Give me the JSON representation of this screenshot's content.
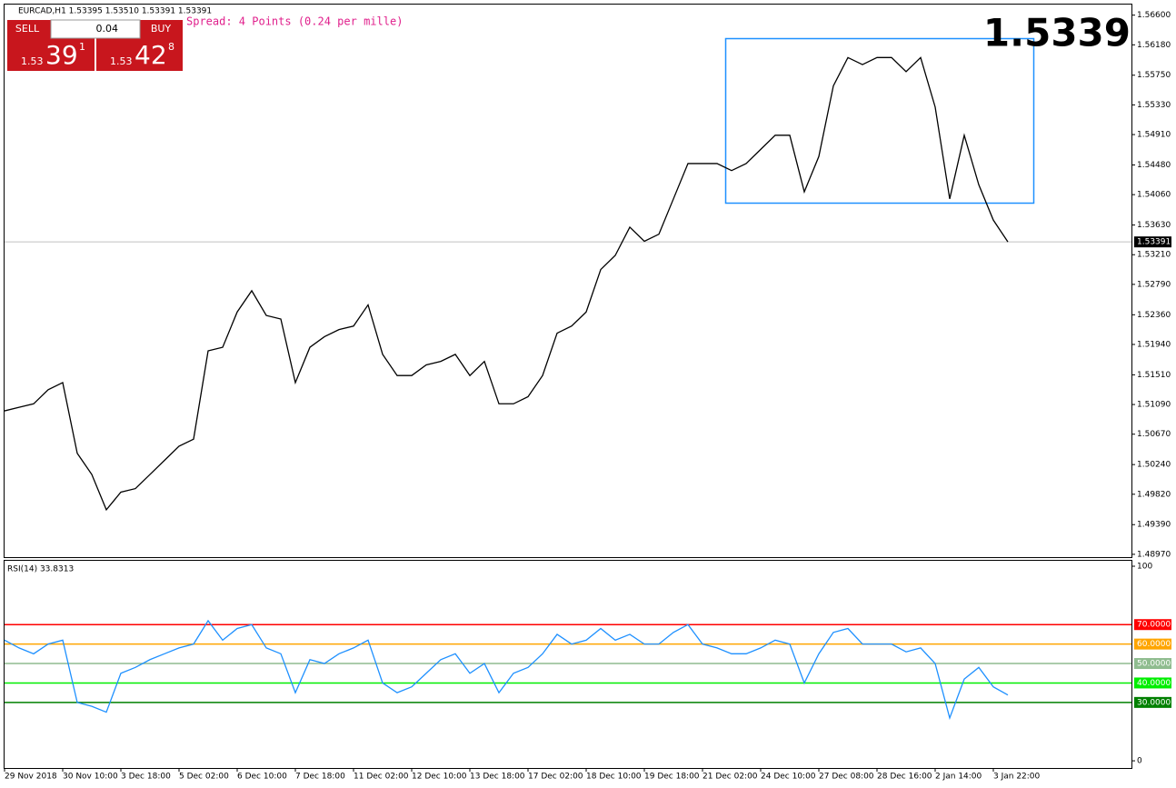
{
  "header": "EURCAD,H1  1.53395 1.53510 1.53391 1.53391",
  "spread": "Spread: 4 Points (0.24 per mille)",
  "big_price": 1.5339,
  "trade_panel": {
    "sell": "SELL",
    "buy": "BUY",
    "lot": "0.04",
    "bid": [
      "1.53",
      "39",
      "1"
    ],
    "ask": [
      "1.53",
      "42",
      "8"
    ]
  },
  "chart_data": [
    {
      "type": "line",
      "color": "#000000",
      "categories": [
        "29 Nov 2018",
        null,
        null,
        null,
        "30 Nov 10:00",
        null,
        null,
        null,
        "3 Dec 18:00",
        null,
        null,
        null,
        "5 Dec 02:00",
        null,
        null,
        null,
        "6 Dec 10:00",
        null,
        null,
        null,
        "7 Dec 18:00",
        null,
        null,
        null,
        "11 Dec 02:00",
        null,
        null,
        null,
        "12 Dec 10:00",
        null,
        null,
        null,
        "13 Dec 18:00",
        null,
        null,
        null,
        "17 Dec 02:00",
        null,
        null,
        null,
        "18 Dec 10:00",
        null,
        null,
        null,
        "19 Dec 18:00",
        null,
        null,
        null,
        "21 Dec 02:00",
        null,
        null,
        null,
        "24 Dec 10:00",
        null,
        null,
        null,
        "27 Dec 08:00",
        null,
        null,
        null,
        "28 Dec 16:00",
        null,
        null,
        null,
        "2 Jan 14:00",
        null,
        null,
        null,
        "3 Jan 22:00",
        null
      ],
      "values": [
        1.51,
        1.5105,
        1.511,
        1.513,
        1.514,
        1.504,
        1.501,
        1.496,
        1.4985,
        1.499,
        1.501,
        1.503,
        1.505,
        1.506,
        1.5185,
        1.519,
        1.524,
        1.527,
        1.5235,
        1.523,
        1.514,
        1.519,
        1.5205,
        1.5215,
        1.522,
        1.525,
        1.518,
        1.515,
        1.515,
        1.5165,
        1.517,
        1.518,
        1.515,
        1.517,
        1.511,
        1.511,
        1.512,
        1.515,
        1.521,
        1.522,
        1.524,
        1.53,
        1.532,
        1.536,
        1.534,
        1.535,
        1.54,
        1.545,
        1.545,
        1.545,
        1.544,
        1.545,
        1.547,
        1.549,
        1.549,
        1.541,
        1.546,
        1.556,
        1.56,
        1.559,
        1.56,
        1.56,
        1.558,
        1.56,
        1.553,
        1.54,
        1.549,
        1.542,
        1.537,
        1.53391
      ],
      "ylim": [
        1.4893,
        1.5675
      ],
      "yticks": [
        {
          "value": 1.566,
          "label": "1.56600"
        },
        {
          "value": 1.5618,
          "label": "1.56180"
        },
        {
          "value": 1.5575,
          "label": "1.55750"
        },
        {
          "value": 1.5533,
          "label": "1.55330"
        },
        {
          "value": 1.5491,
          "label": "1.54910"
        },
        {
          "value": 1.5448,
          "label": "1.54480"
        },
        {
          "value": 1.5406,
          "label": "1.54060"
        },
        {
          "value": 1.5363,
          "label": "1.53630"
        },
        {
          "value": 1.5321,
          "label": "1.53210"
        },
        {
          "value": 1.5279,
          "label": "1.52790"
        },
        {
          "value": 1.5236,
          "label": "1.52360"
        },
        {
          "value": 1.5194,
          "label": "1.51940"
        },
        {
          "value": 1.5151,
          "label": "1.51510"
        },
        {
          "value": 1.5109,
          "label": "1.51090"
        },
        {
          "value": 1.5067,
          "label": "1.50670"
        },
        {
          "value": 1.5024,
          "label": "1.50240"
        },
        {
          "value": 1.4982,
          "label": "1.49820"
        },
        {
          "value": 1.4939,
          "label": "1.49390"
        },
        {
          "value": 1.4897,
          "label": "1.48970"
        }
      ],
      "current_price": 1.53391
    },
    {
      "type": "line",
      "title": "RSI(14) 33.8313",
      "color": "#1e90ff",
      "values": [
        62,
        58,
        55,
        60,
        62,
        30,
        28,
        25,
        45,
        48,
        52,
        55,
        58,
        60,
        72,
        62,
        68,
        70,
        58,
        55,
        35,
        52,
        50,
        55,
        58,
        62,
        40,
        35,
        38,
        45,
        52,
        55,
        45,
        50,
        35,
        45,
        48,
        55,
        65,
        60,
        62,
        68,
        62,
        65,
        60,
        60,
        66,
        70,
        60,
        58,
        55,
        55,
        58,
        62,
        60,
        40,
        55,
        66,
        68,
        60,
        60,
        60,
        56,
        58,
        50,
        22,
        42,
        48,
        38,
        33.8313
      ],
      "ylim": [
        -3.7,
        102.8
      ],
      "yticks": [
        100,
        0
      ],
      "levels": [
        {
          "value": 70,
          "label": "70.0000",
          "color": "#ff0000"
        },
        {
          "value": 60,
          "label": "60.0000",
          "color": "#ffa500"
        },
        {
          "value": 50,
          "label": "50.0000",
          "color": "#8fbc8f"
        },
        {
          "value": 40,
          "label": "40.0000",
          "color": "#00ee00"
        },
        {
          "value": 30,
          "label": "30.0000",
          "color": "#008000"
        }
      ]
    }
  ]
}
